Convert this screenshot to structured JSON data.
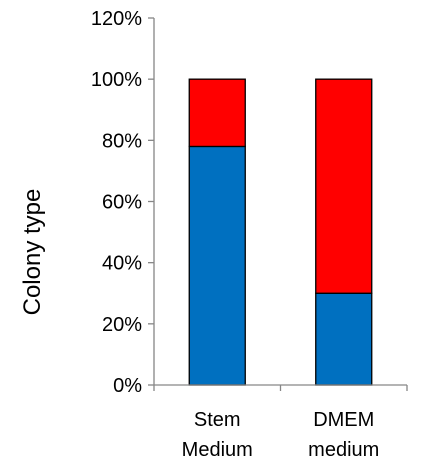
{
  "chart_data": {
    "type": "bar",
    "stacked": true,
    "categories": [
      [
        "Stem",
        "Medium"
      ],
      [
        "DMEM",
        "medium"
      ]
    ],
    "series": [
      {
        "values": [
          78,
          30
        ],
        "color": "#0070C0"
      },
      {
        "values": [
          22,
          70
        ],
        "color": "#FF0000"
      }
    ],
    "ylabel": "Colony type",
    "yticks": [
      "0%",
      "20%",
      "40%",
      "60%",
      "80%",
      "100%",
      "120%"
    ],
    "ylim": [
      0,
      120
    ],
    "ystep": 20,
    "grid": false,
    "legend": "none"
  }
}
